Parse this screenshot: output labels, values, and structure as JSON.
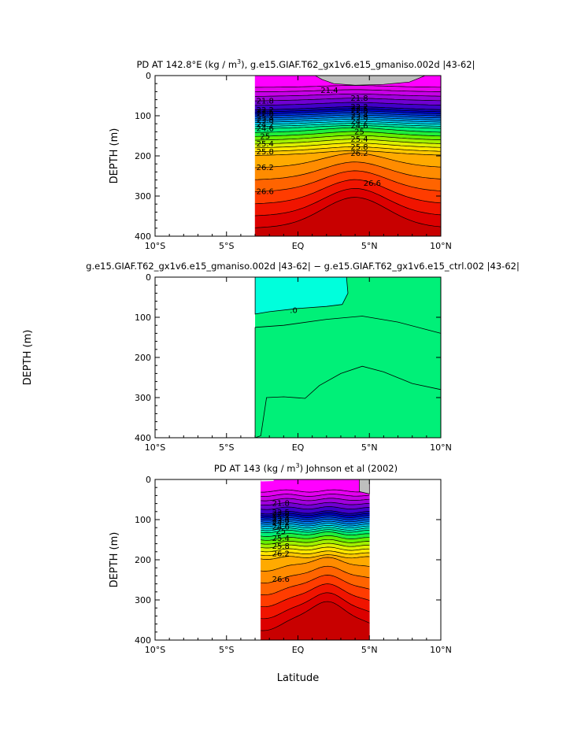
{
  "chart_data": [
    {
      "type": "contour",
      "title_parts": [
        "PD AT 142.8",
        "°E (kg / m",
        "3",
        "), g.e15.GIAF.T62_gx1v6.e15_gmaniso.002d |43-62|"
      ],
      "ylabel": "DEPTH (m)",
      "xlim": [
        -10,
        10
      ],
      "ylim": [
        400,
        0
      ],
      "x_tick_labels": [
        "10°S",
        "5°S",
        "EQ",
        "5°N",
        "10°N"
      ],
      "y_tick_labels": [
        "0",
        "100",
        "200",
        "300",
        "400"
      ],
      "data_lat_range": [
        -3,
        10
      ],
      "contour_labels": [
        "21.4",
        "21.8",
        "22.2",
        "22.5",
        "22.8",
        "23.4",
        "23.8",
        "24.2",
        "24.6",
        "25",
        "25.4",
        "25.8",
        "26.2",
        "26.6"
      ],
      "colors": {
        "land": "#bebebe",
        "bands": [
          "#ff00ff",
          "#e600f0",
          "#c800e6",
          "#a000dc",
          "#7000d2",
          "#4000c8",
          "#1400b4",
          "#0000c8",
          "#0028dc",
          "#0050e6",
          "#0078ee",
          "#00a0f0",
          "#00c8f0",
          "#00e6dc",
          "#00f0b4",
          "#00f078",
          "#1ef03c",
          "#64f000",
          "#a0f000",
          "#dcf000",
          "#ffe600",
          "#ffc800",
          "#ffaa00",
          "#ff8c00",
          "#ff6400",
          "#ff3c00",
          "#f01400",
          "#dc0000",
          "#c80000"
        ]
      }
    },
    {
      "type": "contour",
      "title": "g.e15.GIAF.T62_gx1v6.e15_gmaniso.002d |43-62| − g.e15.GIAF.T62_gx1v6.e15_ctrl.002 |43-62|",
      "ylabel": "DEPTH (m)",
      "xlim": [
        -10,
        10
      ],
      "ylim": [
        400,
        0
      ],
      "x_tick_labels": [
        "10°S",
        "5°S",
        "EQ",
        "5°N",
        "10°N"
      ],
      "y_tick_labels": [
        "0",
        "100",
        "200",
        "300",
        "400"
      ],
      "data_lat_range": [
        -3,
        10
      ],
      "contour_labels": [
        ".0"
      ],
      "colors": {
        "cyan": "#00ffdc",
        "green": "#00f078"
      }
    },
    {
      "type": "contour",
      "title_parts": [
        "PD AT 143 (kg / m",
        "3",
        ") Johnson et al (2002)"
      ],
      "ylabel": "DEPTH (m)",
      "xlabel": "Latitude",
      "xlim": [
        -10,
        10
      ],
      "ylim": [
        400,
        0
      ],
      "x_tick_labels": [
        "10°S",
        "5°S",
        "EQ",
        "5°N",
        "10°N"
      ],
      "y_tick_labels": [
        "0",
        "100",
        "200",
        "300",
        "400"
      ],
      "data_lat_range": [
        -2.6,
        5
      ],
      "contour_labels": [
        "21.8",
        "22.5",
        "22.8",
        "23.4",
        "23.8",
        "24.2",
        "24.6",
        "25",
        "25.4",
        "25.8",
        "26.2",
        "26.6"
      ]
    }
  ]
}
